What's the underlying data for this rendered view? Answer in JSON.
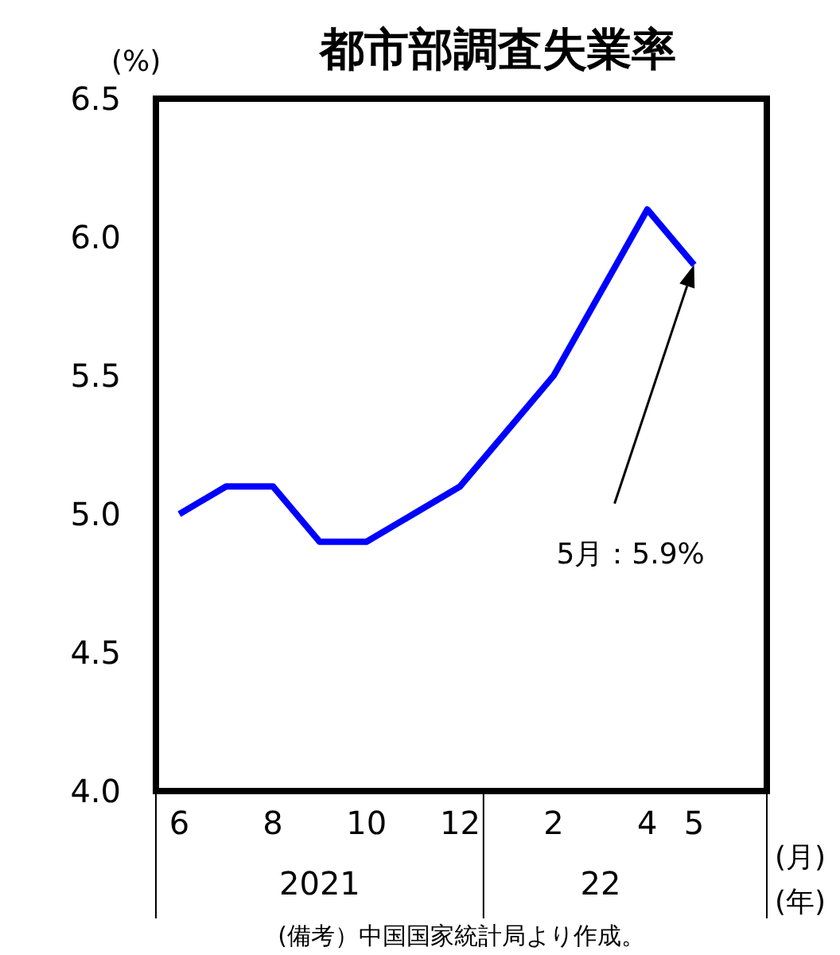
{
  "chart_data": {
    "type": "line",
    "title": "都市部調査失業率",
    "ylabel": "(%)",
    "xlabel": "(月)",
    "categories": [
      "6",
      null,
      "8",
      null,
      "10",
      null,
      "12",
      null,
      "2",
      null,
      "4",
      "5"
    ],
    "series": [
      {
        "color": "#0000ff",
        "values": [
          5.0,
          5.1,
          5.1,
          4.9,
          4.9,
          5.0,
          5.1,
          5.3,
          5.5,
          5.8,
          6.1,
          5.9
        ]
      }
    ],
    "ylim": [
      4.0,
      6.5
    ],
    "yticks": [
      {
        "value": 4,
        "label": "4.0"
      },
      4.5,
      {
        "value": 5,
        "label": "5.0"
      },
      5.5,
      {
        "value": 6,
        "label": "6.0"
      },
      6.5
    ],
    "grid": false,
    "marker": "none",
    "line_style": "solid",
    "annotations": [
      "5月：5.9%",
      "2021",
      "22",
      "(年)",
      "(備考）中国国家統計局より作成。"
    ]
  }
}
